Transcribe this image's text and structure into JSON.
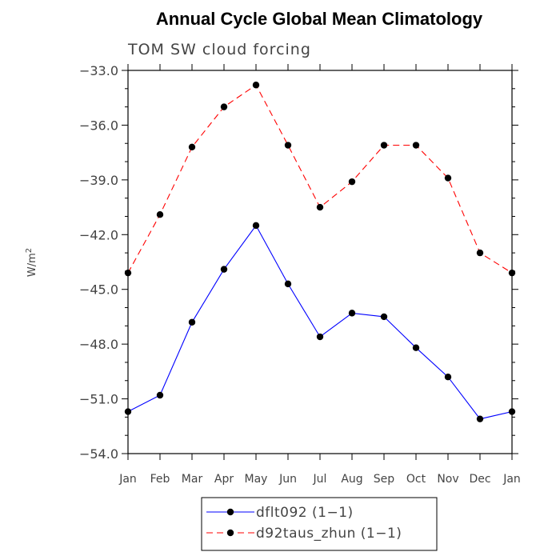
{
  "chart_data": {
    "type": "line",
    "title": "Annual Cycle Global Mean Climatology",
    "subtitle": "TOM SW cloud forcing",
    "xlabel": "",
    "ylabel": "W/m",
    "ylabel_superscript": "2",
    "categories": [
      "Jan",
      "Feb",
      "Mar",
      "Apr",
      "May",
      "Jun",
      "Jul",
      "Aug",
      "Sep",
      "Oct",
      "Nov",
      "Dec",
      "Jan"
    ],
    "ylim": [
      -54.0,
      -33.0
    ],
    "yticks": [
      "-54.0",
      "-51.0",
      "-48.0",
      "-45.0",
      "-42.0",
      "-39.0",
      "-36.0",
      "-33.0"
    ],
    "grid": false,
    "legend_position": "bottom",
    "series": [
      {
        "name": "dflt092 (1-1)",
        "color": "#0000ff",
        "dash": "solid",
        "values": [
          -51.7,
          -50.8,
          -46.8,
          -43.9,
          -41.5,
          -44.7,
          -47.6,
          -46.3,
          -46.5,
          -48.2,
          -49.8,
          -52.1,
          -51.7
        ]
      },
      {
        "name": "d92taus_zhun (1-1)",
        "color": "#ff0000",
        "dash": "dashed",
        "values": [
          -44.1,
          -40.9,
          -37.2,
          -35.0,
          -33.8,
          -37.1,
          -40.5,
          -39.1,
          -37.1,
          -37.1,
          -38.9,
          -43.0,
          -44.1
        ]
      }
    ]
  }
}
